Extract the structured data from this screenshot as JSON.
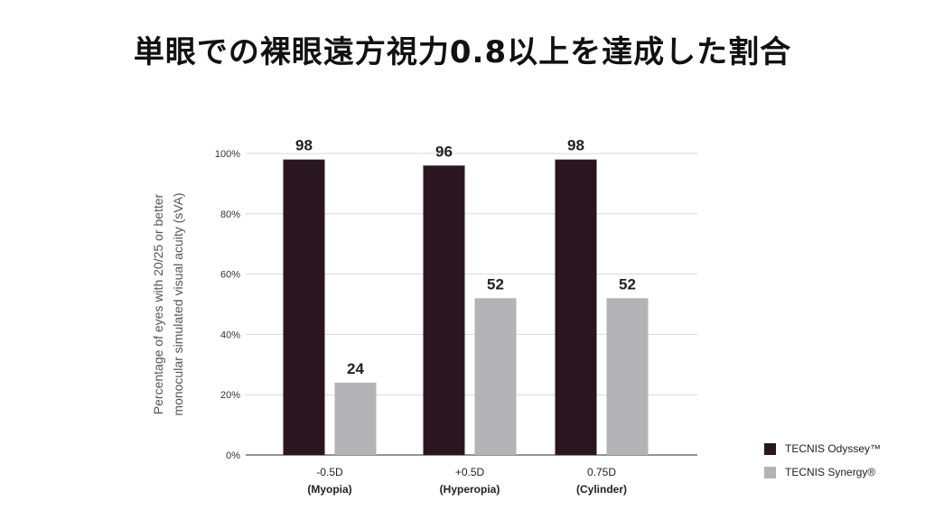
{
  "title": "単眼での裸眼遠方視力0.8以上を達成した割合",
  "chart_data": {
    "type": "bar",
    "ylabel_lines": [
      "Percentage of eyes with 20/25 or better",
      "monocular simulated visual acuity (sVA)"
    ],
    "xlabel": "",
    "categories": [
      {
        "line1": "-0.5D",
        "line2": "(Myopia)"
      },
      {
        "line1": "+0.5D",
        "line2": "(Hyperopia)"
      },
      {
        "line1": "0.75D",
        "line2": "(Cylinder)"
      }
    ],
    "series": [
      {
        "name": "TECNIS Odyssey™",
        "color": "#2a1620",
        "values": [
          98,
          96,
          98
        ]
      },
      {
        "name": "TECNIS Synergy®",
        "color": "#b3b3b5",
        "values": [
          24,
          52,
          52
        ]
      }
    ],
    "ylim": [
      0,
      100
    ],
    "yticks": [
      0,
      20,
      40,
      60,
      80,
      100
    ],
    "ytick_labels": [
      "0%",
      "20%",
      "40%",
      "60%",
      "80%",
      "100%"
    ],
    "grid": true,
    "legend_position": "bottom-right"
  }
}
